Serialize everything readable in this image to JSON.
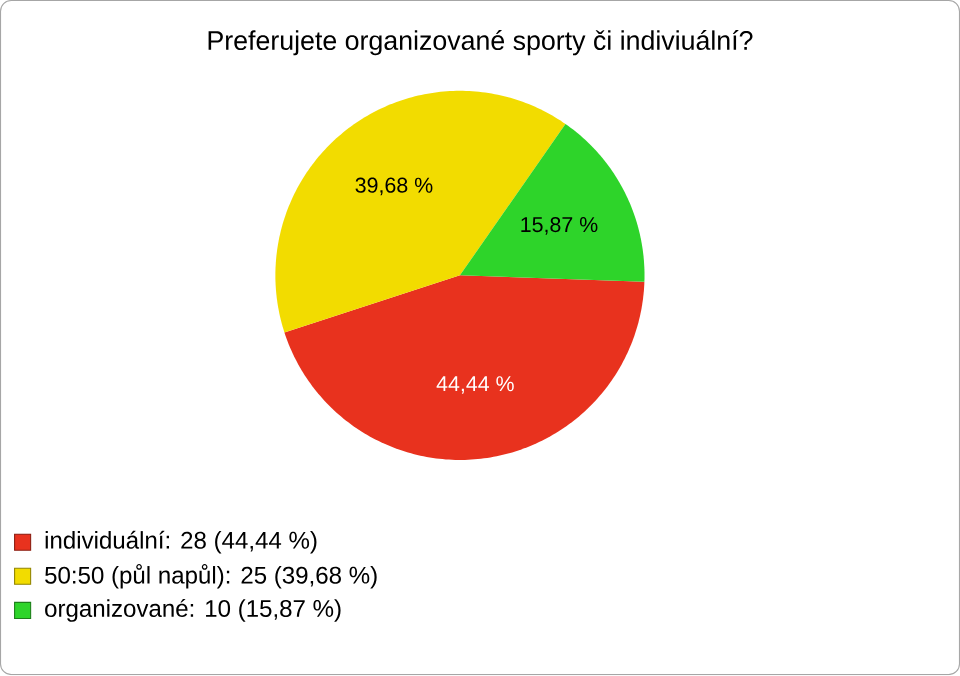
{
  "chart_data": {
    "type": "pie",
    "title": "Preferujete organizované sporty či indiviuální?",
    "categories": [
      "individuální: 28 (44,44 %)",
      "50:50 (půl napůl): 25 (39,68 %)",
      "organizované: 10 (15,87 %)"
    ],
    "values": [
      44.44,
      39.68,
      15.87
    ],
    "value_labels": [
      "44,44 %",
      "39,68 %",
      "15,87 %"
    ],
    "colors": [
      "#e8321e",
      "#f2dc00",
      "#2ed42a"
    ],
    "legend": "bottom left"
  }
}
